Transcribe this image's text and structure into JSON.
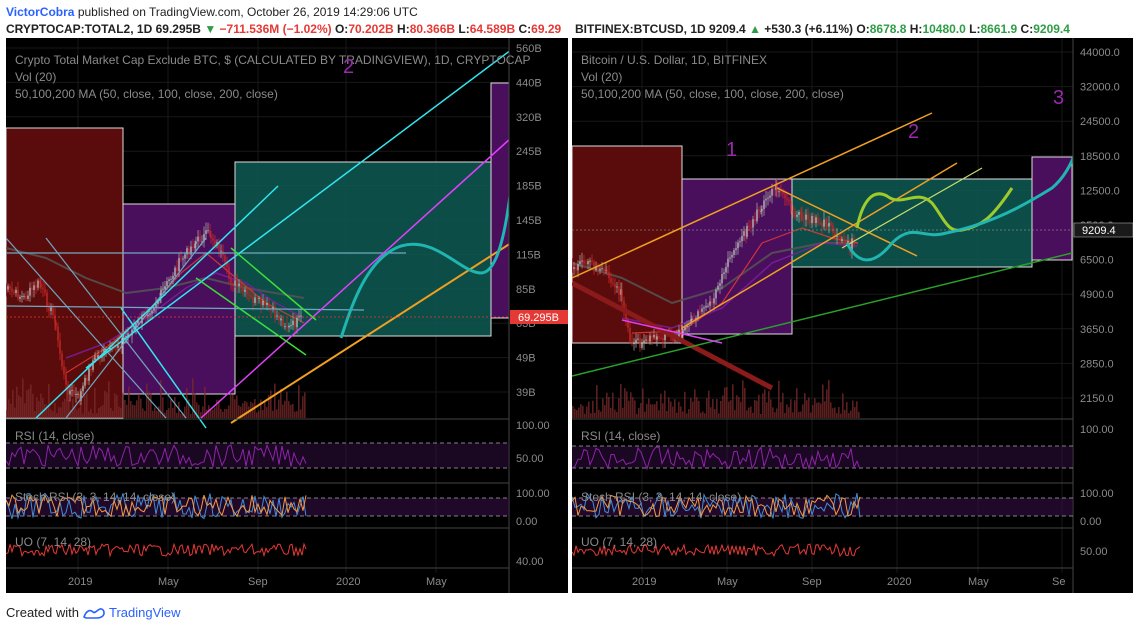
{
  "header": {
    "author": "VictorCobra",
    "published_text": "published on TradingView.com, October 26, 2019 14:29:06 UTC",
    "left_symbol": "CRYPTOCAP:TOTAL2, 1D",
    "left_last": "69.295B",
    "left_change": "−711.536M (−1.02%)",
    "left_o_label": "O:",
    "left_o": "70.202B",
    "left_h_label": "H:",
    "left_h": "80.366B",
    "left_l_label": "L:",
    "left_l": "64.589B",
    "left_c_label": "C:",
    "left_c": "69.29",
    "right_symbol": "BITFINEX:BTCUSD, 1D",
    "right_last": "9209.4",
    "right_change": "+530.3 (+6.11%)",
    "right_o_label": "O:",
    "right_o": "8678.8",
    "right_h_label": "H:",
    "right_h": "10480.0",
    "right_l_label": "L:",
    "right_l": "8661.9",
    "right_c_label": "C:",
    "right_c": "9209.4"
  },
  "footer": {
    "created_with": "Created with",
    "brand": "TradingView"
  },
  "colors": {
    "bg": "#000000",
    "grid": "#1c1c1c",
    "text": "#7d7d7d",
    "candle_up": "#9e9e9e",
    "candle_dn": "#c62828",
    "box_red": "#5a0c0c",
    "box_purple": "#4a0f5c",
    "box_teal": "#0f5a55",
    "cyan": "#31e6f0",
    "magenta": "#e040fb",
    "orange": "#f0a020",
    "teal": "#1fb5b0",
    "green": "#2aa12a",
    "lime": "#9ecb2a",
    "rsi": "#8e24aa",
    "uo": "#e53935",
    "stoch_k": "#3f8fd8",
    "stoch_d": "#f59b42"
  },
  "chart_data": [
    {
      "type": "candlestick",
      "title": "Crypto Total Market Cap Exclude BTC, $ (CALCULATED BY TRADINGVIEW), 1D, CRYPTOCAP",
      "vol_label": "Vol (20)",
      "ma_label": "50,100,200 MA (50, close, 100, close, 200, close)",
      "y_axis": [
        "560B",
        "440B",
        "320B",
        "245B",
        "185B",
        "145B",
        "115B",
        "85B",
        "63B",
        "49B",
        "39B"
      ],
      "y_axis_scale": "log",
      "x_axis": [
        "2019",
        "May",
        "Sep",
        "2020",
        "May"
      ],
      "last_price_label": "69.295B",
      "annotations": [
        "2"
      ],
      "indicators": [
        {
          "name": "RSI (14, close)",
          "axis": [
            "100.00",
            "50.00"
          ]
        },
        {
          "name": "Stoch RSI (3, 3, 14, 14, close)",
          "axis": [
            "100.00",
            "0.00"
          ]
        },
        {
          "name": "UO (7, 14, 28)",
          "axis": [
            "40.00"
          ]
        }
      ]
    },
    {
      "type": "candlestick",
      "title": "Bitcoin / U.S. Dollar, 1D, BITFINEX",
      "vol_label": "Vol (20)",
      "ma_label": "50,100,200 MA (50, close, 100, close, 200, close)",
      "y_axis": [
        "44000.0",
        "32000.0",
        "24500.0",
        "18500.0",
        "12500.0",
        "9500.0",
        "6500.0",
        "4900.0",
        "3650.0",
        "2850.0",
        "2150.0"
      ],
      "y_axis_scale": "log",
      "x_axis": [
        "2019",
        "May",
        "Sep",
        "2020",
        "May",
        "Se"
      ],
      "last_price_label": "9209.4",
      "annotations": [
        "1",
        "2",
        "3"
      ],
      "indicators": [
        {
          "name": "RSI (14, close)",
          "axis": [
            "100.00"
          ]
        },
        {
          "name": "Stoch RSI (3, 3, 14, 14, close)",
          "axis": [
            "100.00",
            "0.00"
          ]
        },
        {
          "name": "UO (7, 14, 28)",
          "axis": [
            "50.00"
          ]
        }
      ]
    }
  ]
}
